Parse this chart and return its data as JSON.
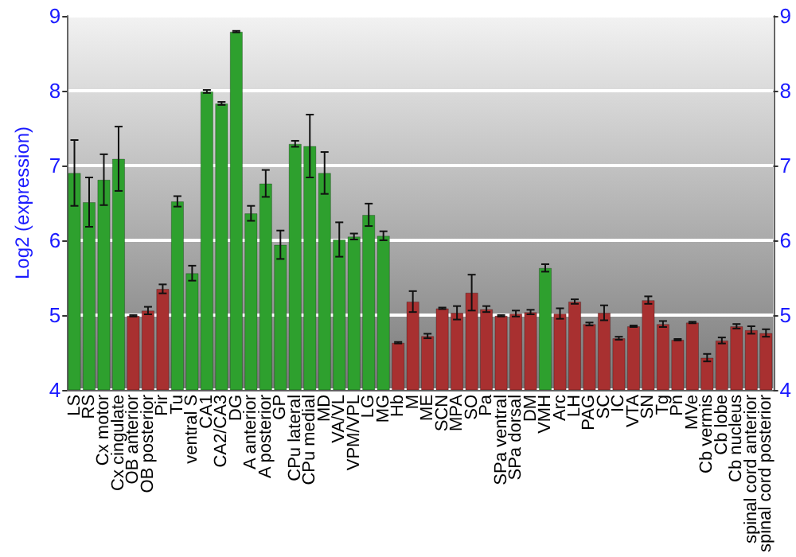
{
  "chart_data": {
    "type": "bar",
    "ylabel": "Log2 (expression)",
    "categories": [
      "LS",
      "RS",
      "Cx motor",
      "Cx cingulate",
      "OB anterior",
      "OB posterior",
      "Pir",
      "Tu",
      "ventral S",
      "CA1",
      "CA2/CA3",
      "DG",
      "A anterior",
      "A posterior",
      "GP",
      "CPu lateral",
      "CPu medial",
      "MD",
      "VA/VL",
      "VPM/VPL",
      "LG",
      "MG",
      "Hb",
      "M",
      "ME",
      "SCN",
      "MPA",
      "SO",
      "Pa",
      "SPa ventral",
      "SPa dorsal",
      "DM",
      "VMH",
      "Arc",
      "LH",
      "PAG",
      "SC",
      "IC",
      "VTA",
      "SN",
      "Tg",
      "Pn",
      "MVe",
      "Cb vermis",
      "Cb lobe",
      "Cb nucleus",
      "spinal cord anterior",
      "spinal cord posterior"
    ],
    "values": [
      6.9,
      6.51,
      6.81,
      7.09,
      4.99,
      5.06,
      5.35,
      6.52,
      5.56,
      7.99,
      7.83,
      8.79,
      6.36,
      6.76,
      5.94,
      7.29,
      7.26,
      6.9,
      6.01,
      6.05,
      6.34,
      6.06,
      4.63,
      5.18,
      4.72,
      5.09,
      5.03,
      5.3,
      5.08,
      4.99,
      5.02,
      5.04,
      5.63,
      5.02,
      5.18,
      4.88,
      5.03,
      4.69,
      4.85,
      5.2,
      4.88,
      4.67,
      4.9,
      4.43,
      4.66,
      4.85,
      4.8,
      4.76
    ],
    "errors": [
      0.44,
      0.33,
      0.34,
      0.43,
      0.01,
      0.05,
      0.06,
      0.07,
      0.1,
      0.02,
      0.02,
      0.01,
      0.1,
      0.18,
      0.19,
      0.04,
      0.42,
      0.28,
      0.23,
      0.04,
      0.15,
      0.06,
      0.01,
      0.14,
      0.03,
      0.01,
      0.09,
      0.24,
      0.04,
      0.01,
      0.04,
      0.03,
      0.05,
      0.07,
      0.03,
      0.02,
      0.1,
      0.02,
      0.01,
      0.05,
      0.04,
      0.01,
      0.01,
      0.05,
      0.04,
      0.03,
      0.05,
      0.05
    ],
    "colors": [
      "#2ea02e",
      "#2ea02e",
      "#2ea02e",
      "#2ea02e",
      "#a83030",
      "#a83030",
      "#a83030",
      "#2ea02e",
      "#2ea02e",
      "#2ea02e",
      "#2ea02e",
      "#2ea02e",
      "#2ea02e",
      "#2ea02e",
      "#2ea02e",
      "#2ea02e",
      "#2ea02e",
      "#2ea02e",
      "#2ea02e",
      "#2ea02e",
      "#2ea02e",
      "#2ea02e",
      "#a83030",
      "#a83030",
      "#a83030",
      "#a83030",
      "#a83030",
      "#a83030",
      "#a83030",
      "#a83030",
      "#a83030",
      "#a83030",
      "#2ea02e",
      "#a83030",
      "#a83030",
      "#a83030",
      "#a83030",
      "#a83030",
      "#a83030",
      "#a83030",
      "#a83030",
      "#a83030",
      "#a83030",
      "#a83030",
      "#a83030",
      "#a83030",
      "#a83030",
      "#a83030"
    ],
    "ylim": [
      4,
      9
    ],
    "yticks": [
      4,
      5,
      6,
      7,
      8,
      9
    ],
    "y2lim": [
      4,
      9
    ],
    "y2ticks": [
      4,
      5,
      6,
      7,
      8,
      9
    ],
    "grid": "y"
  }
}
